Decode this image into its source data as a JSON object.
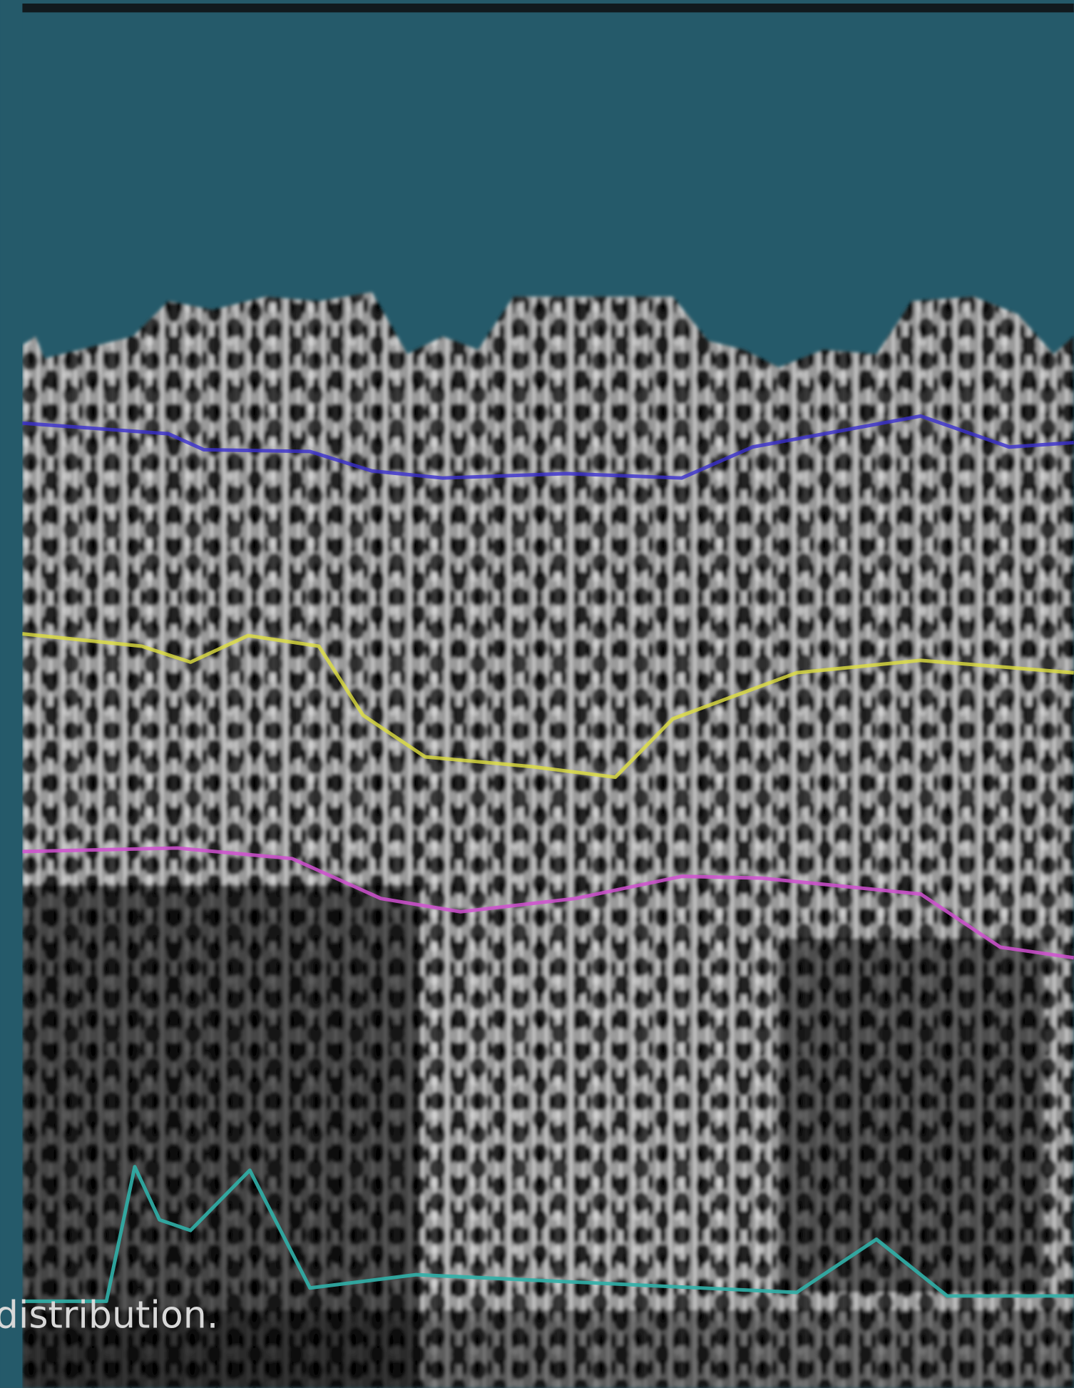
{
  "caption": "distribution."
}
